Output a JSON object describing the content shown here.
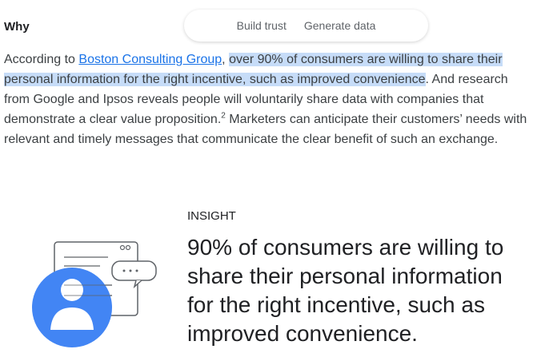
{
  "header": {
    "title": "Why"
  },
  "tabs": [
    "Build trust",
    "Generate data"
  ],
  "paragraph": {
    "intro": "According to ",
    "link": "Boston Consulting Group",
    "after_link": ", ",
    "highlight": "over 90% of consumers are willing to share their personal information for the right incentive, such as improved convenience",
    "middle": ". And research from Google and Ipsos reveals people will voluntarily share data with companies that demonstrate a clear value proposition.",
    "footnote": "2",
    "end": " Marketers can anticipate their customers’ needs with relevant and timely messages that communicate the clear benefit of such an exchange."
  },
  "insight": {
    "label": "INSIGHT",
    "text": "90% of consumers are willing to share their personal information for the right incentive, such as improved convenience."
  }
}
